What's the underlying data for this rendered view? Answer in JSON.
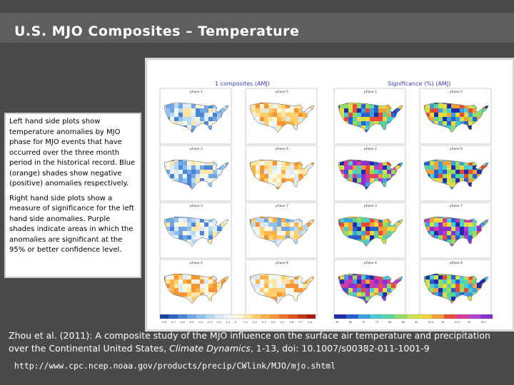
{
  "slide": {
    "title": "U.S. MJO Composites – Temperature"
  },
  "figure": {
    "left_header": "1 composites (AMJ)",
    "right_header": "Significance (%) (AMJ)",
    "panels": [
      {
        "label": "phase 1",
        "kind": "anomaly",
        "tone": "cool"
      },
      {
        "label": "phase 5",
        "kind": "anomaly",
        "tone": "warm"
      },
      {
        "label": "phase 1",
        "kind": "significance",
        "tone": "mixed"
      },
      {
        "label": "phase 5",
        "kind": "significance",
        "tone": "mixed"
      },
      {
        "label": "phase 2",
        "kind": "anomaly",
        "tone": "cool"
      },
      {
        "label": "phase 6",
        "kind": "anomaly",
        "tone": "warm"
      },
      {
        "label": "phase 2",
        "kind": "significance",
        "tone": "sig"
      },
      {
        "label": "phase 6",
        "kind": "significance",
        "tone": "mixed"
      },
      {
        "label": "phase 3",
        "kind": "anomaly",
        "tone": "cool"
      },
      {
        "label": "phase 7",
        "kind": "anomaly",
        "tone": "mixed"
      },
      {
        "label": "phase 3",
        "kind": "significance",
        "tone": "mixed"
      },
      {
        "label": "phase 7",
        "kind": "significance",
        "tone": "sig"
      },
      {
        "label": "phase 4",
        "kind": "anomaly",
        "tone": "warm"
      },
      {
        "label": "phase 8",
        "kind": "anomaly",
        "tone": "warm"
      },
      {
        "label": "phase 4",
        "kind": "significance",
        "tone": "sig"
      },
      {
        "label": "phase 8",
        "kind": "significance",
        "tone": "mixed"
      }
    ],
    "anomaly_colorbar": {
      "labels": [
        "-0.8",
        "-0.7",
        "-0.6",
        "-0.5",
        "-0.4",
        "-0.3",
        "-0.2",
        "-0.1",
        "0",
        "0.1",
        "0.2",
        "0.3",
        "0.4",
        "0.5",
        "0.6",
        "0.7",
        "0.8"
      ],
      "colors": [
        "#1d3fa0",
        "#2e63c4",
        "#4a86d8",
        "#6fa6e3",
        "#94c0ec",
        "#b8d7f3",
        "#d9eafa",
        "#eef5fd",
        "#fff7dc",
        "#ffe6a6",
        "#ffcf6e",
        "#ffb347",
        "#f79535",
        "#ef7428",
        "#e0521c",
        "#c93316",
        "#a81b10"
      ]
    },
    "significance_colorbar": {
      "labels": [
        "50",
        "60",
        "70",
        "75",
        "80",
        "85",
        "90",
        "92.5",
        "95",
        "97.5",
        "99",
        "99.5"
      ],
      "colors": [
        "#1f2ea8",
        "#2a5fd0",
        "#3aa0e0",
        "#4ccbd0",
        "#5ed29a",
        "#96dc62",
        "#cde34a",
        "#f1d742",
        "#f4a03a",
        "#e84b3a",
        "#d43a9a",
        "#b040d0",
        "#8a2fd0"
      ]
    }
  },
  "callout": {
    "p1": "Left hand side plots show temperature anomalies by MJO phase for MJO events that have occurred over the three month period in the historical record. Blue (orange) shades show negative (positive) anomalies respectively.",
    "p2": "Right hand side plots show a measure of significance for the left hand side anomalies. Purple shades indicate areas in which the anomalies are significant at the 95% or better confidence level."
  },
  "citation": {
    "prefix": "Zhou et al. (2011): A composite study of the MJO influence on the surface air temperature and precipitation over the Continental United States, ",
    "journal": "Climate Dynamics",
    "suffix": ", 1-13, doi: 10.1007/s00382-011-1001-9"
  },
  "url": "http://www.cpc.ncep.noaa.gov/products/precip/CWlink/MJO/mjo.shtml"
}
